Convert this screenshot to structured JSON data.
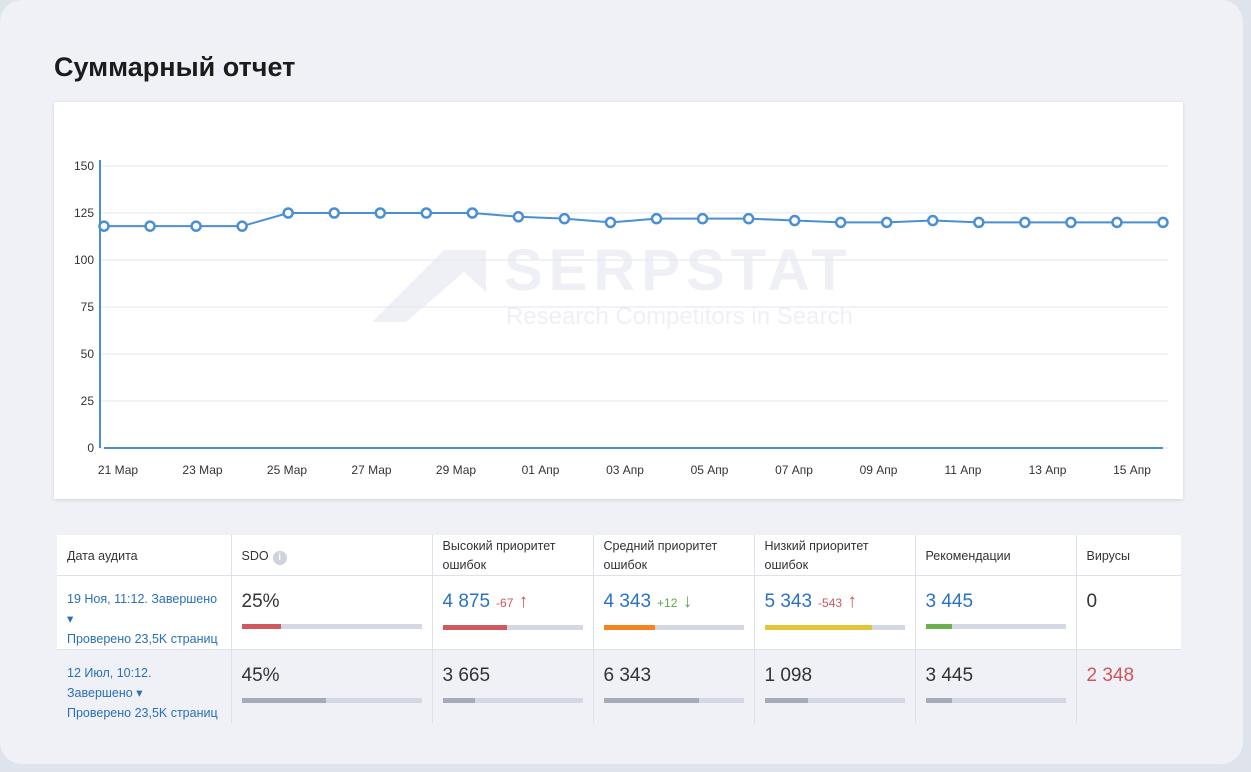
{
  "title": "Суммарный отчет",
  "watermark": {
    "logo": "SERPSTAT",
    "tagline": "Research Competitors in Search"
  },
  "chart_data": {
    "type": "line",
    "ylim": [
      0,
      150
    ],
    "yticks": [
      "0",
      "25",
      "50",
      "75",
      "100",
      "125",
      "150"
    ],
    "xticks": [
      "21 Мар",
      "23 Мар",
      "25 Мар",
      "27 Мар",
      "29 Мар",
      "01 Апр",
      "03 Апр",
      "05 Апр",
      "07 Апр",
      "09 Апр",
      "11 Апр",
      "13 Апр",
      "15 Апр"
    ],
    "series": [
      {
        "name": "main",
        "color": "#4a8fd4",
        "values": [
          118,
          118,
          118,
          118,
          125,
          125,
          125,
          125,
          125,
          123,
          122,
          120,
          122,
          122,
          122,
          121,
          120,
          120,
          121,
          120,
          120,
          120,
          120,
          120
        ]
      },
      {
        "name": "baseline",
        "color": "#4a8fd4",
        "values": [
          0,
          0,
          0,
          0,
          0,
          0,
          0,
          0,
          0,
          0,
          0,
          0,
          0,
          0,
          0,
          0,
          0,
          0,
          0,
          0,
          0,
          0,
          0,
          0
        ]
      }
    ]
  },
  "table": {
    "headers": [
      "Дата аудита",
      "SDO",
      "Высокий приоритет ошибок",
      "Средний приоритет ошибок",
      "Низкий приоритет ошибок",
      "Рекомендации",
      "Вирусы"
    ],
    "info_icon": "i",
    "rows": [
      {
        "date": "19 Ноя, 11:12. Завершено",
        "checked": "Проверено 23,5K страниц",
        "sdo": "25%",
        "sdo_fill": 22,
        "high": "4 875",
        "high_delta": "-67",
        "high_fill": 46,
        "mid": "4 343",
        "mid_delta": "+12",
        "mid_fill": 37,
        "low": "5 343",
        "low_delta": "-543",
        "low_fill": 77,
        "rec": "3 445",
        "rec_fill": 19,
        "virus": "0"
      },
      {
        "date": "12 Июл, 10:12. Завершено",
        "checked": "Проверено 23,5K страниц",
        "sdo": "45%",
        "sdo_fill": 47,
        "high": "3 665",
        "high_fill": 23,
        "mid": "6 343",
        "mid_fill": 68,
        "low": "1 098",
        "low_fill": 31,
        "rec": "3 445",
        "rec_fill": 19,
        "virus": "2 348"
      }
    ]
  },
  "colors": {
    "red": "#d0595f",
    "orange": "#f5841f",
    "yellow": "#e3c53a",
    "green": "#6cb04e",
    "gray": "#a6abbb"
  }
}
